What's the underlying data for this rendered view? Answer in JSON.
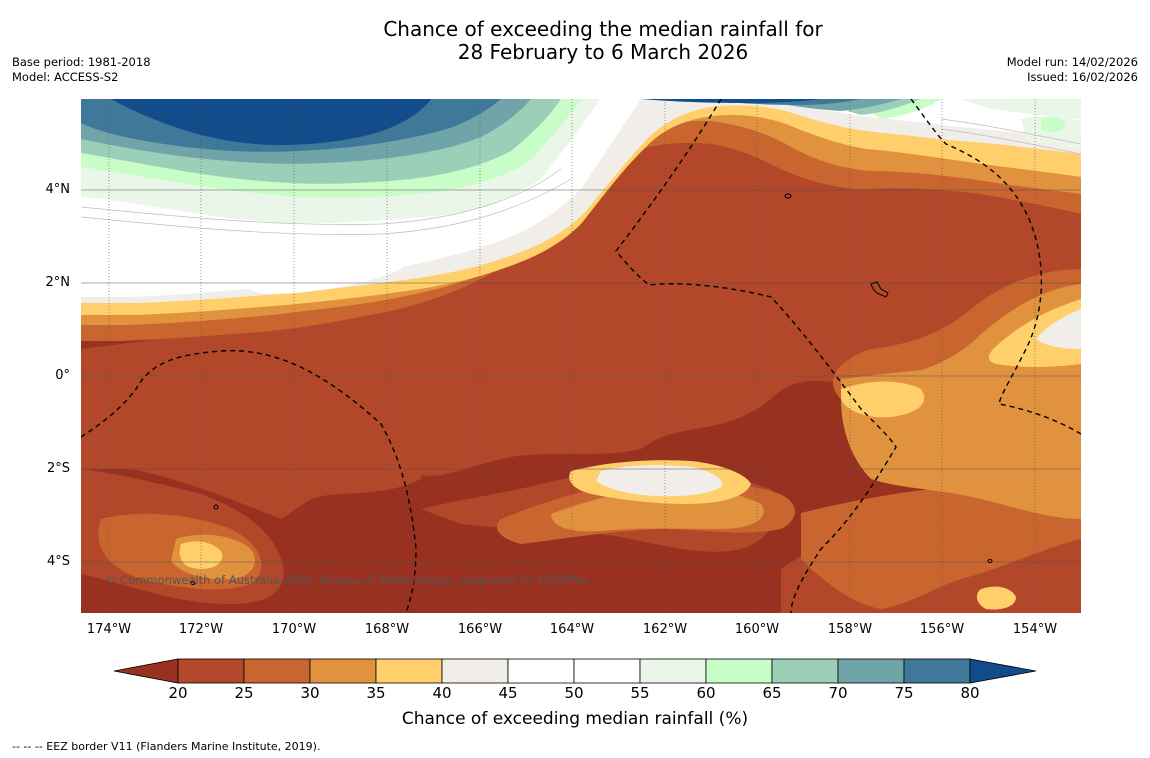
{
  "header": {
    "title_line1": "Chance of exceeding the median rainfall for",
    "title_line2": "28 February to 6 March 2026",
    "base_period": "Base period: 1981-2018",
    "model": "Model: ACCESS-S2",
    "model_run": "Model run: 14/02/2026",
    "issued": "Issued: 16/02/2026"
  },
  "map": {
    "lat_labels": [
      "4°N",
      "2°N",
      "0°",
      "2°S",
      "4°S"
    ],
    "lon_labels": [
      "174°W",
      "172°W",
      "170°W",
      "168°W",
      "166°W",
      "164°W",
      "162°W",
      "160°W",
      "158°W",
      "156°W",
      "154°W"
    ],
    "copyright": "© Commonwealth of Australia 2026, Bureau of Meteorology, supported by COSPPac"
  },
  "colorbar": {
    "ticks": [
      "20",
      "25",
      "30",
      "35",
      "40",
      "45",
      "50",
      "55",
      "60",
      "65",
      "70",
      "75",
      "80"
    ],
    "label": "Chance of exceeding median rainfall (%)",
    "colors": [
      "#983120",
      "#b2472a",
      "#c9652f",
      "#e0923f",
      "#fecf6a",
      "#f1eee9",
      "#ffffff",
      "#ffffff",
      "#e9f6e8",
      "#c8fdc8",
      "#9bcfb8",
      "#6fa4a8",
      "#3f7899",
      "#134c8a"
    ]
  },
  "legend": {
    "footnote": "--  --  -- EEZ border V11 (Flanders Marine Institute, 2019)."
  }
}
